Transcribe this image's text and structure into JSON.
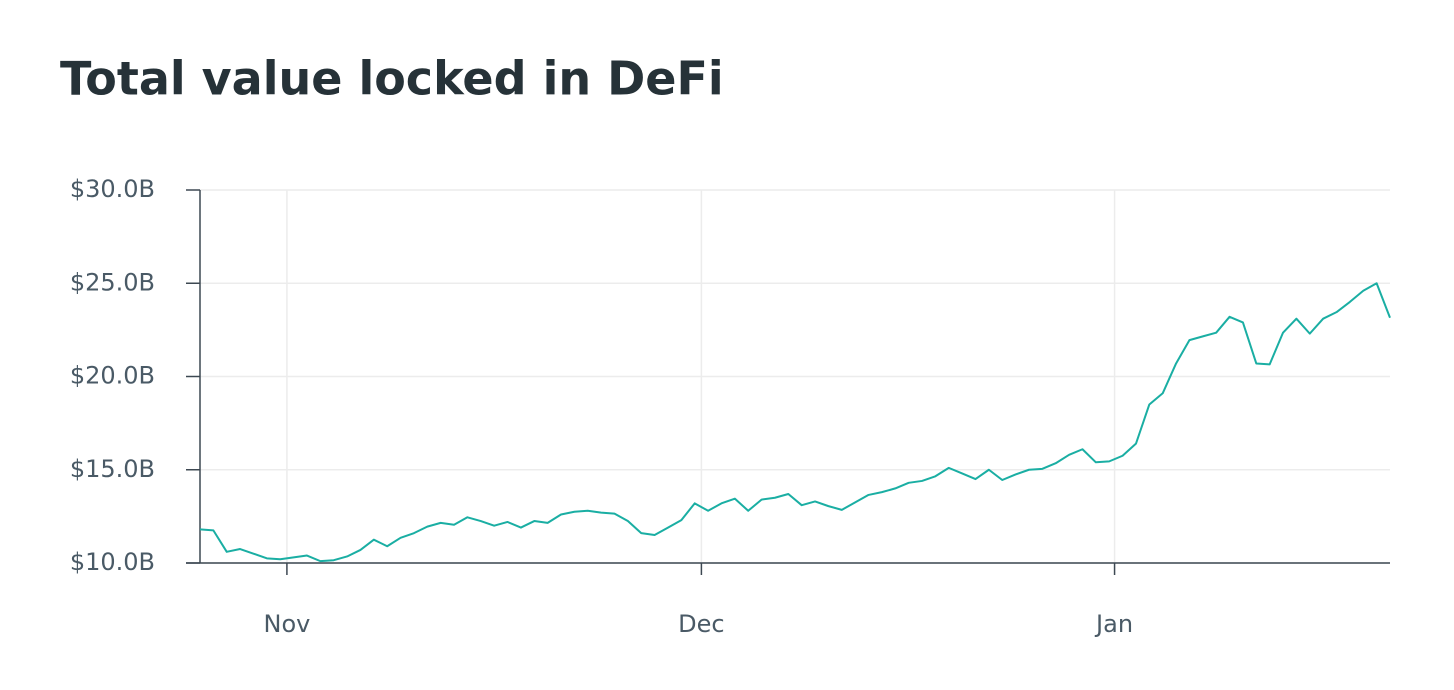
{
  "chart_data": {
    "type": "line",
    "title": "Total value locked in DeFi",
    "x": [
      0,
      1,
      2,
      3,
      4,
      5,
      6,
      7,
      8,
      9,
      10,
      11,
      12,
      13,
      14,
      15,
      16,
      17,
      18,
      19,
      20,
      21,
      22,
      23,
      24,
      25,
      26,
      27,
      28,
      29,
      30,
      31,
      32,
      33,
      34,
      35,
      36,
      37,
      38,
      39,
      40,
      41,
      42,
      43,
      44,
      45,
      46,
      47,
      48,
      49,
      50,
      51,
      52,
      53,
      54,
      55,
      56,
      57,
      58,
      59,
      60,
      61,
      62,
      63,
      64,
      65,
      66,
      67,
      68,
      69,
      70,
      71,
      72,
      73,
      74,
      75,
      76,
      77,
      78,
      79,
      80,
      81,
      82,
      83,
      84,
      85,
      86,
      87,
      88,
      89
    ],
    "values": [
      11.8,
      11.75,
      10.6,
      10.75,
      10.5,
      10.25,
      10.2,
      10.3,
      10.4,
      10.1,
      10.15,
      10.35,
      10.7,
      11.25,
      10.9,
      11.35,
      11.6,
      11.95,
      12.15,
      12.05,
      12.45,
      12.25,
      12.0,
      12.2,
      11.9,
      12.25,
      12.15,
      12.6,
      12.75,
      12.8,
      12.7,
      12.65,
      12.25,
      11.6,
      11.5,
      11.9,
      12.3,
      13.2,
      12.8,
      13.2,
      13.45,
      12.8,
      13.4,
      13.5,
      13.7,
      13.1,
      13.3,
      13.05,
      12.85,
      13.25,
      13.65,
      13.8,
      14.0,
      14.3,
      14.4,
      14.65,
      15.1,
      14.8,
      14.5,
      15.0,
      14.45,
      14.75,
      15.0,
      15.05,
      15.35,
      15.8,
      16.1,
      15.4,
      15.45,
      15.75,
      16.4,
      18.5,
      19.1,
      20.7,
      21.95,
      22.15,
      22.35,
      23.2,
      22.9,
      20.7,
      20.65,
      22.35,
      23.1,
      22.3,
      23.1,
      23.45,
      24.0,
      24.6,
      25.0,
      23.15
    ],
    "color": "#1aaea3",
    "xlim": [
      0,
      89
    ],
    "xticks": [
      {
        "value": 6.5,
        "label": "Nov"
      },
      {
        "value": 37.5,
        "label": "Dec"
      },
      {
        "value": 68.4,
        "label": "Jan"
      }
    ],
    "ylim": [
      10,
      30
    ],
    "yticks": [
      {
        "value": 10,
        "label": "$10.0B"
      },
      {
        "value": 15,
        "label": "$15.0B"
      },
      {
        "value": 20,
        "label": "$20.0B"
      },
      {
        "value": 25,
        "label": "$25.0B"
      },
      {
        "value": 30,
        "label": "$30.0B"
      }
    ],
    "grid": true
  }
}
